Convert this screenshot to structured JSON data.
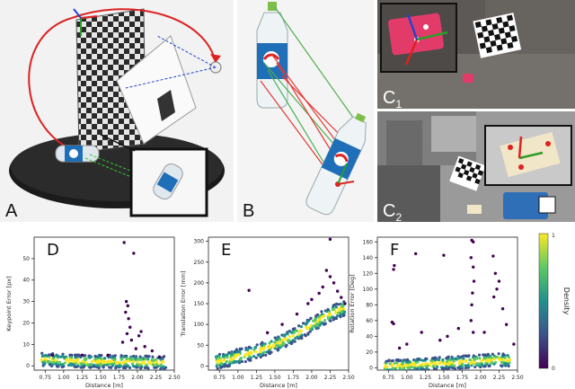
{
  "panels": {
    "A": {
      "letter": "A"
    },
    "B": {
      "letter": "B"
    },
    "C1": {
      "letter": "C",
      "subscript": "1"
    },
    "C2": {
      "letter": "C",
      "subscript": "2"
    }
  },
  "colorbar": {
    "label": "Density",
    "ticks": [
      "1",
      "0"
    ],
    "colors": [
      "#440154",
      "#3b528b",
      "#21918c",
      "#5ec962",
      "#fde725"
    ]
  },
  "chart_data": [
    {
      "type": "scatter",
      "panel_letter": "D",
      "xlabel": "Distance [m]",
      "ylabel": "Keypoint Error [px]",
      "xlim": [
        0.6,
        2.5
      ],
      "ylim": [
        -2,
        60
      ],
      "xticks": [
        "0.75",
        "1.00",
        "1.25",
        "1.50",
        "1.75",
        "2.00",
        "2.25",
        "2.50"
      ],
      "xtick_values": [
        0.75,
        1.0,
        1.25,
        1.5,
        1.75,
        2.0,
        2.25,
        2.5
      ],
      "yticks": [
        "0",
        "10",
        "20",
        "30",
        "40",
        "50"
      ],
      "ytick_values": [
        0,
        10,
        20,
        30,
        40,
        50
      ],
      "band": [
        [
          0.7,
          3
        ],
        [
          1.0,
          2.5
        ],
        [
          1.3,
          2
        ],
        [
          1.6,
          2
        ],
        [
          1.9,
          2
        ],
        [
          2.2,
          1.5
        ],
        [
          2.4,
          1.5
        ]
      ],
      "band_width": 3,
      "outliers": [
        [
          1.82,
          57.5
        ],
        [
          1.95,
          52.5
        ],
        [
          1.85,
          30
        ],
        [
          1.87,
          28
        ],
        [
          1.84,
          25
        ],
        [
          1.88,
          22
        ],
        [
          1.9,
          18
        ],
        [
          1.86,
          15
        ],
        [
          2.05,
          16
        ],
        [
          2.02,
          14
        ],
        [
          1.92,
          12
        ],
        [
          1.8,
          11
        ],
        [
          2.1,
          9
        ],
        [
          1.98,
          8
        ],
        [
          2.2,
          7
        ],
        [
          1.25,
          5
        ],
        [
          0.85,
          5
        ],
        [
          1.6,
          5
        ],
        [
          2.3,
          4
        ]
      ]
    },
    {
      "type": "scatter",
      "panel_letter": "E",
      "xlabel": "Distance [m]",
      "ylabel": "Translation Error [mm]",
      "xlim": [
        0.6,
        2.5
      ],
      "ylim": [
        -10,
        310
      ],
      "xticks": [
        "0.75",
        "1.00",
        "1.25",
        "1.50",
        "1.75",
        "2.00",
        "2.25",
        "2.50"
      ],
      "xtick_values": [
        0.75,
        1.0,
        1.25,
        1.5,
        1.75,
        2.0,
        2.25,
        2.5
      ],
      "yticks": [
        "0",
        "50",
        "100",
        "150",
        "200",
        "250",
        "300"
      ],
      "ytick_values": [
        0,
        50,
        100,
        150,
        200,
        250,
        300
      ],
      "band": [
        [
          0.7,
          10
        ],
        [
          0.9,
          18
        ],
        [
          1.1,
          28
        ],
        [
          1.3,
          38
        ],
        [
          1.5,
          52
        ],
        [
          1.7,
          68
        ],
        [
          1.9,
          88
        ],
        [
          2.1,
          110
        ],
        [
          2.3,
          130
        ],
        [
          2.45,
          140
        ]
      ],
      "band_width": 18,
      "outliers": [
        [
          2.25,
          305
        ],
        [
          1.15,
          182
        ],
        [
          2.2,
          230
        ],
        [
          2.25,
          215
        ],
        [
          2.3,
          200
        ],
        [
          2.15,
          190
        ],
        [
          2.35,
          180
        ],
        [
          2.1,
          175
        ],
        [
          2.4,
          165
        ],
        [
          1.95,
          150
        ],
        [
          2.0,
          160
        ],
        [
          1.8,
          125
        ],
        [
          1.6,
          100
        ],
        [
          1.4,
          80
        ],
        [
          2.45,
          150
        ]
      ]
    },
    {
      "type": "scatter",
      "panel_letter": "F",
      "xlabel": "Distance [m]",
      "ylabel": "Rotation Error [Deg]",
      "xlim": [
        0.6,
        2.5
      ],
      "ylim": [
        -3,
        166
      ],
      "xticks": [
        "0.75",
        "1.00",
        "1.25",
        "1.50",
        "1.75",
        "2.00",
        "2.25",
        "2.50"
      ],
      "xtick_values": [
        0.75,
        1.0,
        1.25,
        1.5,
        1.75,
        2.0,
        2.25,
        2.5
      ],
      "yticks": [
        "0",
        "20",
        "40",
        "60",
        "80",
        "100",
        "120",
        "140",
        "160"
      ],
      "ytick_values": [
        0,
        20,
        40,
        60,
        80,
        100,
        120,
        140,
        160
      ],
      "band": [
        [
          0.7,
          2
        ],
        [
          1.0,
          3
        ],
        [
          1.3,
          5
        ],
        [
          1.6,
          6
        ],
        [
          1.9,
          8
        ],
        [
          2.2,
          10
        ],
        [
          2.4,
          10
        ]
      ],
      "band_width": 8,
      "outliers": [
        [
          1.88,
          162
        ],
        [
          1.9,
          160
        ],
        [
          1.87,
          140
        ],
        [
          1.9,
          128
        ],
        [
          1.91,
          110
        ],
        [
          1.89,
          95
        ],
        [
          1.88,
          80
        ],
        [
          1.87,
          60
        ],
        [
          1.9,
          45
        ],
        [
          0.83,
          130
        ],
        [
          0.82,
          125
        ],
        [
          0.8,
          58
        ],
        [
          0.82,
          56
        ],
        [
          1.12,
          145
        ],
        [
          1.5,
          143
        ],
        [
          2.17,
          142
        ],
        [
          2.2,
          120
        ],
        [
          2.25,
          110
        ],
        [
          2.22,
          100
        ],
        [
          2.18,
          90
        ],
        [
          2.3,
          75
        ],
        [
          2.35,
          55
        ],
        [
          1.2,
          45
        ],
        [
          1.55,
          40
        ],
        [
          1.0,
          30
        ],
        [
          1.7,
          50
        ],
        [
          1.45,
          35
        ],
        [
          2.05,
          45
        ],
        [
          2.45,
          30
        ],
        [
          0.9,
          25
        ]
      ]
    }
  ]
}
